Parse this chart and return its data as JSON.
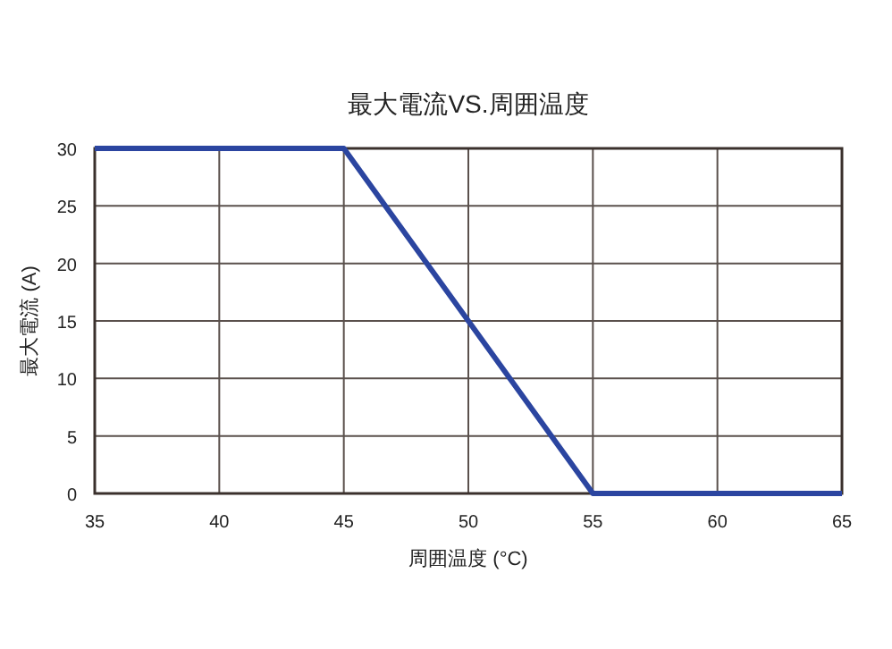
{
  "chart_data": {
    "type": "line",
    "title": "最大電流VS.周囲温度",
    "xlabel": "周囲温度 (°C)",
    "ylabel": "最大電流 (A)",
    "x": [
      35,
      45,
      55,
      65
    ],
    "series": [
      {
        "color": "#2b45a0",
        "values": [
          30,
          30,
          0,
          0
        ]
      }
    ],
    "xlim": [
      35,
      65
    ],
    "ylim": [
      0,
      30
    ],
    "xticks": [
      35,
      40,
      45,
      50,
      55,
      60,
      65
    ],
    "yticks": [
      0,
      5,
      10,
      15,
      20,
      25,
      30
    ],
    "grid": true,
    "marker": "none",
    "line_style": "solid"
  }
}
